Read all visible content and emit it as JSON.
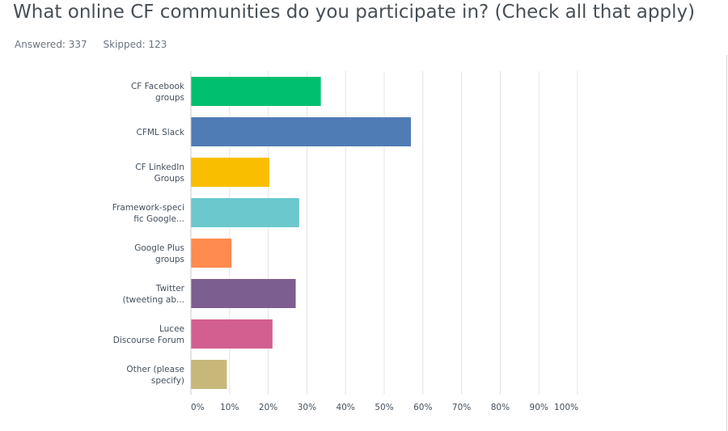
{
  "title": "What online CF communities do you participate in? (Check all that apply)",
  "answered": "Answered: 337",
  "skipped": "Skipped: 123",
  "chart_data": {
    "type": "bar",
    "orientation": "horizontal",
    "categories": [
      [
        "CF Facebook",
        "groups"
      ],
      [
        "CFML Slack"
      ],
      [
        "CF LinkedIn",
        "Groups"
      ],
      [
        "Framework-speci",
        "fic Google..."
      ],
      [
        "Google Plus",
        "groups"
      ],
      [
        "Twitter",
        "(tweeting ab..."
      ],
      [
        "Lucee",
        "Discourse Forum"
      ],
      [
        "Other (please",
        "specify)"
      ]
    ],
    "values": [
      33.5,
      56.8,
      20.2,
      27.9,
      10.4,
      27.0,
      21.0,
      9.2
    ],
    "colors": [
      "#00bf6f",
      "#507cb6",
      "#f9be00",
      "#6bc8cd",
      "#ff8b4f",
      "#7d5e90",
      "#d25f90",
      "#c7b879"
    ],
    "xlim": [
      0,
      100
    ],
    "ticks": [
      "0%",
      "10%",
      "20%",
      "30%",
      "40%",
      "50%",
      "60%",
      "70%",
      "80%",
      "90%",
      "100%"
    ],
    "grid": true,
    "gridColor": "#e4e4e4"
  }
}
